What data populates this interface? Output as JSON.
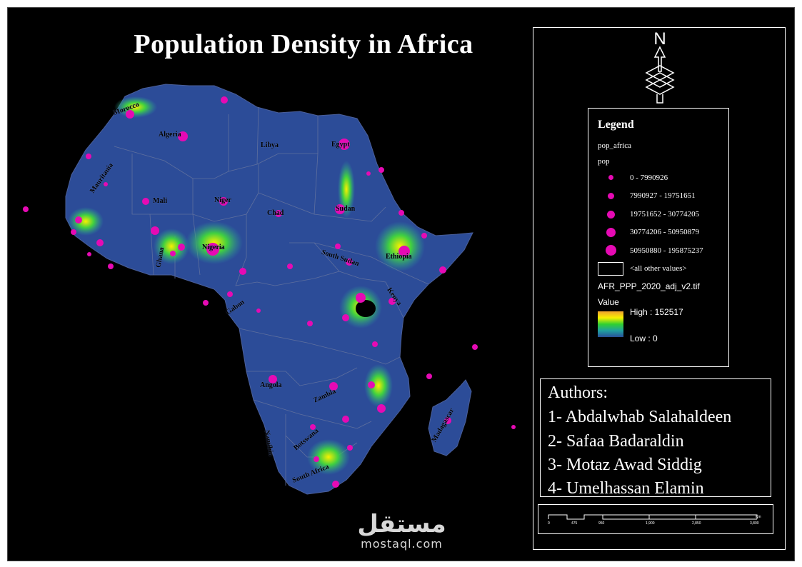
{
  "title": "Population Density in Africa",
  "north_arrow": {
    "letter": "N"
  },
  "legend": {
    "heading": "Legend",
    "layer_name": "pop_africa",
    "field_name": "pop",
    "classes": [
      {
        "label": "0 - 7990926"
      },
      {
        "label": "7990927 - 19751651"
      },
      {
        "label": "19751652 - 30774205"
      },
      {
        "label": "30774206 - 50950879"
      },
      {
        "label": "50950880 - 195875237"
      }
    ],
    "null_label": "<all other values>",
    "raster_name": "AFR_PPP_2020_adj_v2.tif",
    "value_label": "Value",
    "high_label": "High : 152517",
    "low_label": "Low : 0",
    "dot_color": "#e60ab4"
  },
  "authors": {
    "heading": "Authors:",
    "list": [
      "1- Abdalwhab Salahaldeen",
      "2- Safaa Badaraldin",
      "3- Motaz Awad Siddig",
      "4- Umelhassan Elamin"
    ]
  },
  "scale_bar": {
    "ticks": [
      "0",
      "475",
      "950",
      "1,900",
      "2,850",
      "3,800"
    ],
    "unit": "Km"
  },
  "countries": [
    "Morocco",
    "Algeria",
    "Libya",
    "Egypt",
    "Mauritania",
    "Mali",
    "Niger",
    "Chad",
    "Sudan",
    "Nigeria",
    "Ghana",
    "Ethiopia",
    "South Sudan",
    "Kenya",
    "Gabon",
    "Angola",
    "Zambia",
    "Namibia",
    "Botswana",
    "South Africa",
    "Madagascar"
  ],
  "watermark": {
    "arabic": "مستقل",
    "latin": "mostaql.com"
  }
}
